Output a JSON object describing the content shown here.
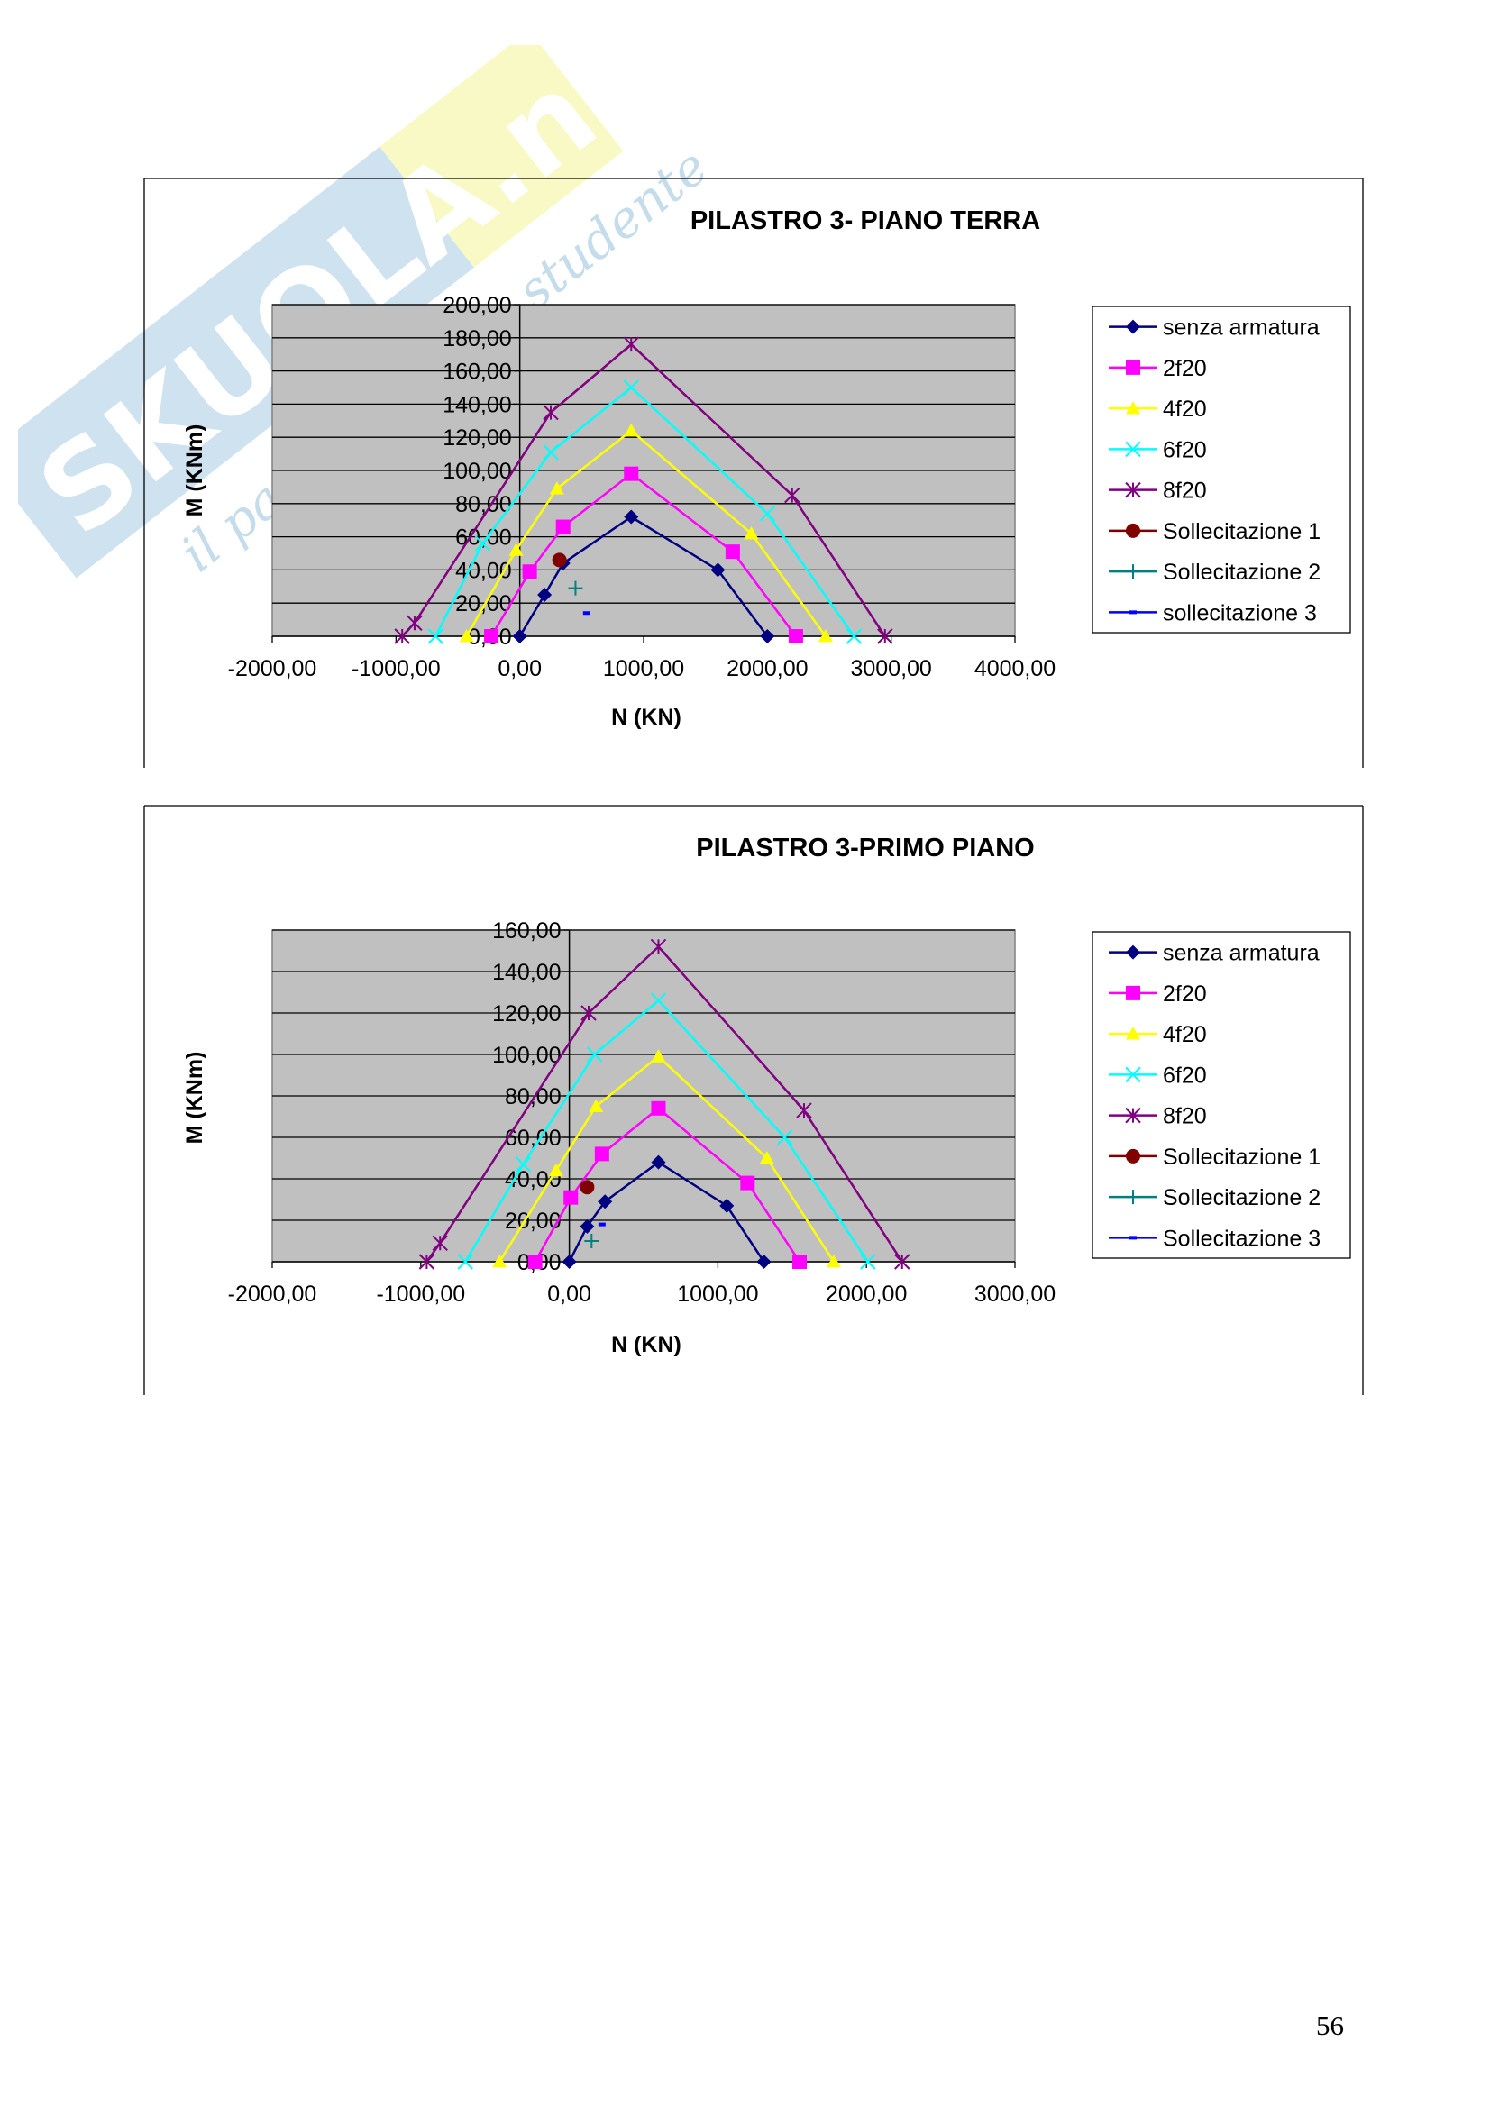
{
  "watermark": {
    "brand": "SKUOLA.net",
    "tagline": "il paradiso dello studente"
  },
  "page_number": "56",
  "colors": {
    "plot_bg": "#c0c0c0",
    "senza armatura": "#000080",
    "2f20": "#ff00ff",
    "4f20": "#ffff00",
    "6f20": "#00ffff",
    "8f20": "#800080",
    "Sollecitazione 1": "#800000",
    "Sollecitazione 2": "#008080",
    "Sollecitazione 3": "#0000ff"
  },
  "chart_data": [
    {
      "type": "scatter",
      "title": "PILASTRO 3- PIANO TERRA",
      "xlabel": "N (KN)",
      "ylabel": "M (KNm)",
      "xlim": [
        -2000,
        4000
      ],
      "ylim": [
        0,
        200
      ],
      "x_ticks": [
        "-2000,00",
        "-1000,00",
        "0,00",
        "1000,00",
        "2000,00",
        "3000,00",
        "4000,00"
      ],
      "y_ticks": [
        "0,00",
        "20,00",
        "40,00",
        "60,00",
        "80,00",
        "100,00",
        "120,00",
        "140,00",
        "160,00",
        "180,00",
        "200,00"
      ],
      "grid": true,
      "legend": "right",
      "series": [
        {
          "name": "senza armatura",
          "marker": "diamond",
          "line": true,
          "x": [
            0,
            200,
            350,
            900,
            1600,
            2000
          ],
          "y": [
            0,
            25,
            44,
            72,
            40,
            0
          ]
        },
        {
          "name": "2f20",
          "marker": "square",
          "line": true,
          "x": [
            -230,
            80,
            350,
            900,
            1720,
            2230
          ],
          "y": [
            0,
            39,
            66,
            98,
            51,
            0
          ]
        },
        {
          "name": "4f20",
          "marker": "triangle",
          "line": true,
          "x": [
            -430,
            -30,
            300,
            900,
            1870,
            2470
          ],
          "y": [
            0,
            52,
            89,
            124,
            62,
            0
          ]
        },
        {
          "name": "6f20",
          "marker": "x",
          "line": true,
          "x": [
            -680,
            -300,
            250,
            900,
            2000,
            2700
          ],
          "y": [
            0,
            56,
            111,
            150,
            74,
            0
          ]
        },
        {
          "name": "8f20",
          "marker": "star",
          "line": true,
          "x": [
            -950,
            -850,
            250,
            900,
            2200,
            2950
          ],
          "y": [
            0,
            8,
            135,
            176,
            85,
            0
          ]
        },
        {
          "name": "Sollecitazione 1",
          "marker": "circle",
          "line": false,
          "x": [
            320
          ],
          "y": [
            46
          ]
        },
        {
          "name": "Sollecitazione 2",
          "marker": "plus",
          "line": false,
          "x": [
            450
          ],
          "y": [
            29
          ]
        },
        {
          "name": "sollecitazione 3",
          "marker": "dash",
          "line": false,
          "x": [
            540
          ],
          "y": [
            14
          ]
        }
      ]
    },
    {
      "type": "scatter",
      "title": "PILASTRO 3-PRIMO PIANO",
      "xlabel": "N (KN)",
      "ylabel": "M (KNm)",
      "xlim": [
        -2000,
        3000
      ],
      "ylim": [
        0,
        160
      ],
      "x_ticks": [
        "-2000,00",
        "-1000,00",
        "0,00",
        "1000,00",
        "2000,00",
        "3000,00"
      ],
      "y_ticks": [
        "0,00",
        "20,00",
        "40,00",
        "60,00",
        "80,00",
        "100,00",
        "120,00",
        "140,00",
        "160,00"
      ],
      "grid": true,
      "legend": "right",
      "series": [
        {
          "name": "senza armatura",
          "marker": "diamond",
          "line": true,
          "x": [
            0,
            120,
            240,
            600,
            1060,
            1310
          ],
          "y": [
            0,
            17,
            29,
            48,
            27,
            0
          ]
        },
        {
          "name": "2f20",
          "marker": "square",
          "line": true,
          "x": [
            -230,
            10,
            220,
            600,
            1200,
            1550
          ],
          "y": [
            0,
            31,
            52,
            74,
            38,
            0
          ]
        },
        {
          "name": "4f20",
          "marker": "triangle",
          "line": true,
          "x": [
            -470,
            -90,
            180,
            600,
            1330,
            1780
          ],
          "y": [
            0,
            44,
            75,
            99,
            50,
            0
          ]
        },
        {
          "name": "6f20",
          "marker": "x",
          "line": true,
          "x": [
            -700,
            -310,
            170,
            600,
            1450,
            2010
          ],
          "y": [
            0,
            47,
            100,
            126,
            60,
            0
          ]
        },
        {
          "name": "8f20",
          "marker": "star",
          "line": true,
          "x": [
            -960,
            -870,
            130,
            600,
            1580,
            2240
          ],
          "y": [
            0,
            9,
            120,
            152,
            73,
            0
          ]
        },
        {
          "name": "Sollecitazione 1",
          "marker": "circle",
          "line": false,
          "x": [
            120
          ],
          "y": [
            36
          ]
        },
        {
          "name": "Sollecitazione 2",
          "marker": "plus",
          "line": false,
          "x": [
            150
          ],
          "y": [
            10
          ]
        },
        {
          "name": "Sollecitazione 3",
          "marker": "dash",
          "line": false,
          "x": [
            220
          ],
          "y": [
            18
          ]
        }
      ]
    }
  ]
}
